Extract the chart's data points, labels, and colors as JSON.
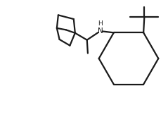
{
  "background_color": "#ffffff",
  "line_color": "#1a1a1a",
  "line_width": 1.6,
  "figsize": [
    2.39,
    1.66
  ],
  "dpi": 100,
  "xlim": [
    0.0,
    10.0
  ],
  "ylim": [
    0.0,
    7.0
  ],
  "font_size_N": 7.5,
  "font_size_H": 6.5
}
